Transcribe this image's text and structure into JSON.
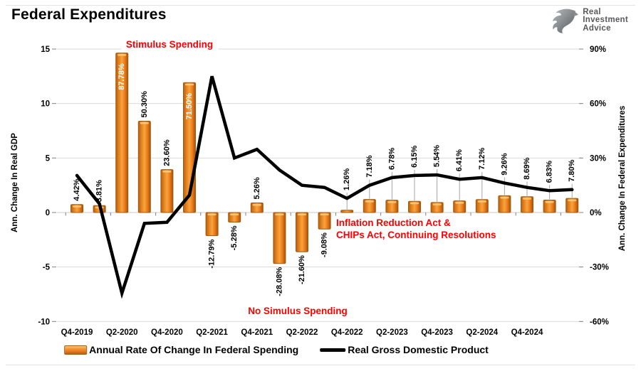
{
  "title": "Federal Expenditures",
  "logo": {
    "lines": [
      "Real",
      "Investment",
      "Advice"
    ]
  },
  "colors": {
    "bar_fill": "#ED7D31",
    "bar_border": "#9E5A0E",
    "bar_label_inside": "#FFFFFF",
    "bar_label_outside": "#000000",
    "gdp_line": "#000000",
    "annotation_red": "#FF0000",
    "grid": "#D9D9D9",
    "tick": "#808080",
    "leader_line": "#A6A6A6",
    "axis_text": "#000000",
    "logo_text": "#58595B"
  },
  "chart_data": {
    "type": "combo",
    "grid": true,
    "legend_position": "bottom",
    "points_per_series": 23,
    "x_tick_labels": [
      "Q4-2019",
      "Q2-2020",
      "Q4-2020",
      "Q2-2021",
      "Q4-2021",
      "Q2-2022",
      "Q4-2022",
      "Q2-2023",
      "Q4-2023",
      "Q2-2024",
      "Q4-2024"
    ],
    "series": [
      {
        "name": "Annual Rate Of Change In Federal Spending",
        "type": "bar",
        "axis": "right",
        "unit": "%",
        "label_format": "0.00%",
        "values": [
          4.42,
          3.81,
          87.78,
          50.3,
          23.6,
          71.5,
          -12.79,
          -5.28,
          5.26,
          -28.08,
          -21.6,
          -9.08,
          1.26,
          7.18,
          6.78,
          6.15,
          5.54,
          6.41,
          7.12,
          9.26,
          8.69,
          6.83,
          7.8
        ]
      },
      {
        "name": "Real Gross Domestic Product",
        "type": "line",
        "axis": "left",
        "estimated": true,
        "values": [
          3.4,
          0.8,
          -7.4,
          -1.0,
          -0.9,
          1.6,
          12.5,
          5.0,
          5.8,
          3.9,
          2.5,
          2.3,
          1.3,
          2.5,
          3.2,
          3.4,
          3.45,
          3.05,
          3.2,
          2.7,
          2.3,
          2.0,
          2.1
        ]
      }
    ],
    "left_axis": {
      "title": "Ann. Change In Real GDP",
      "ticks": [
        15,
        10,
        5,
        0,
        -5,
        -10
      ],
      "range": [
        -10,
        15
      ]
    },
    "right_axis": {
      "title": "Ann. Change In Federal Expenditures",
      "ticks": [
        "90%",
        "60%",
        "30%",
        "0%",
        "-30%",
        "-60%"
      ],
      "range": [
        -60,
        90
      ]
    },
    "annotations": {
      "stimulus": "Stimulus Spending",
      "ira_line1": "Inflation Reduction Act &",
      "ira_line2": "CHIPs Act, Continuing Resolutions",
      "no_stimulus": "No Simulus Spending"
    }
  }
}
